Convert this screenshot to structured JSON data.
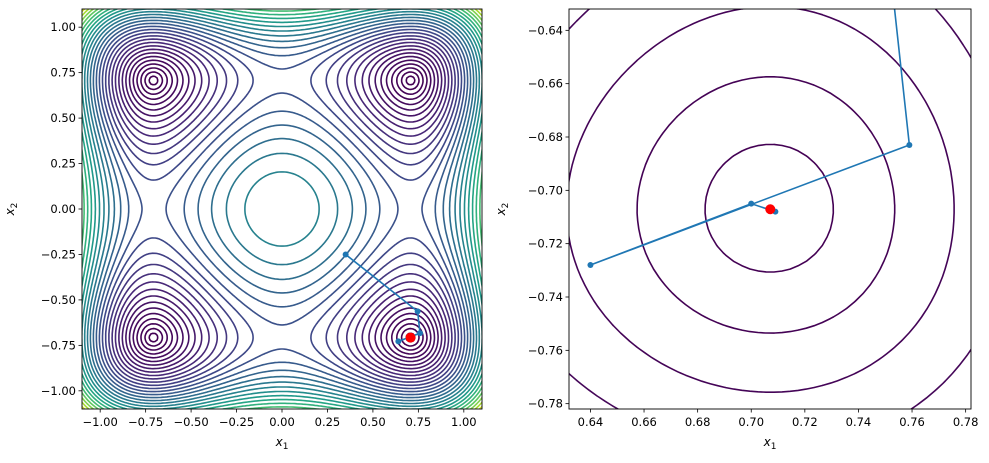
{
  "chart_data": [
    {
      "type": "contour",
      "function_levels": "viridis colormap, ~30 levels",
      "xlabel": "x1",
      "ylabel": "x2",
      "xlim": [
        -1.1,
        1.1
      ],
      "ylim": [
        -1.1,
        1.1
      ],
      "xticks": [
        "−1.00",
        "−0.75",
        "−0.50",
        "−0.25",
        "0.00",
        "0.25",
        "0.50",
        "0.75",
        "1.00"
      ],
      "yticks": [
        "−1.00",
        "−0.75",
        "−0.50",
        "−0.25",
        "0.00",
        "0.25",
        "0.50",
        "0.75",
        "1.00"
      ],
      "grid": false,
      "trajectory": {
        "color": "#1f77b4",
        "points": [
          [
            0.35,
            -0.25
          ],
          [
            0.746,
            -0.563
          ],
          [
            0.759,
            -0.683
          ],
          [
            0.64,
            -0.728
          ],
          [
            0.7,
            -0.705
          ],
          [
            0.709,
            -0.708
          ]
        ]
      },
      "optimum": {
        "color": "#ff0000",
        "point": [
          0.7071,
          -0.7071
        ]
      }
    },
    {
      "type": "contour",
      "xlabel": "x1",
      "ylabel": "x2",
      "xlim": [
        0.632,
        0.782
      ],
      "ylim": [
        -0.782,
        -0.632
      ],
      "xticks": [
        "0.64",
        "0.66",
        "0.68",
        "0.70",
        "0.72",
        "0.74",
        "0.76",
        "0.78"
      ],
      "yticks": [
        "−0.64",
        "−0.66",
        "−0.68",
        "−0.70",
        "−0.72",
        "−0.74",
        "−0.76",
        "−0.78"
      ],
      "grid": false,
      "trajectory": {
        "color": "#1f77b4",
        "points": [
          [
            0.35,
            -0.25
          ],
          [
            0.746,
            -0.563
          ],
          [
            0.759,
            -0.683
          ],
          [
            0.64,
            -0.728
          ],
          [
            0.7,
            -0.705
          ],
          [
            0.709,
            -0.708
          ]
        ]
      },
      "optimum": {
        "color": "#ff0000",
        "point": [
          0.7071,
          -0.7071
        ]
      }
    }
  ]
}
